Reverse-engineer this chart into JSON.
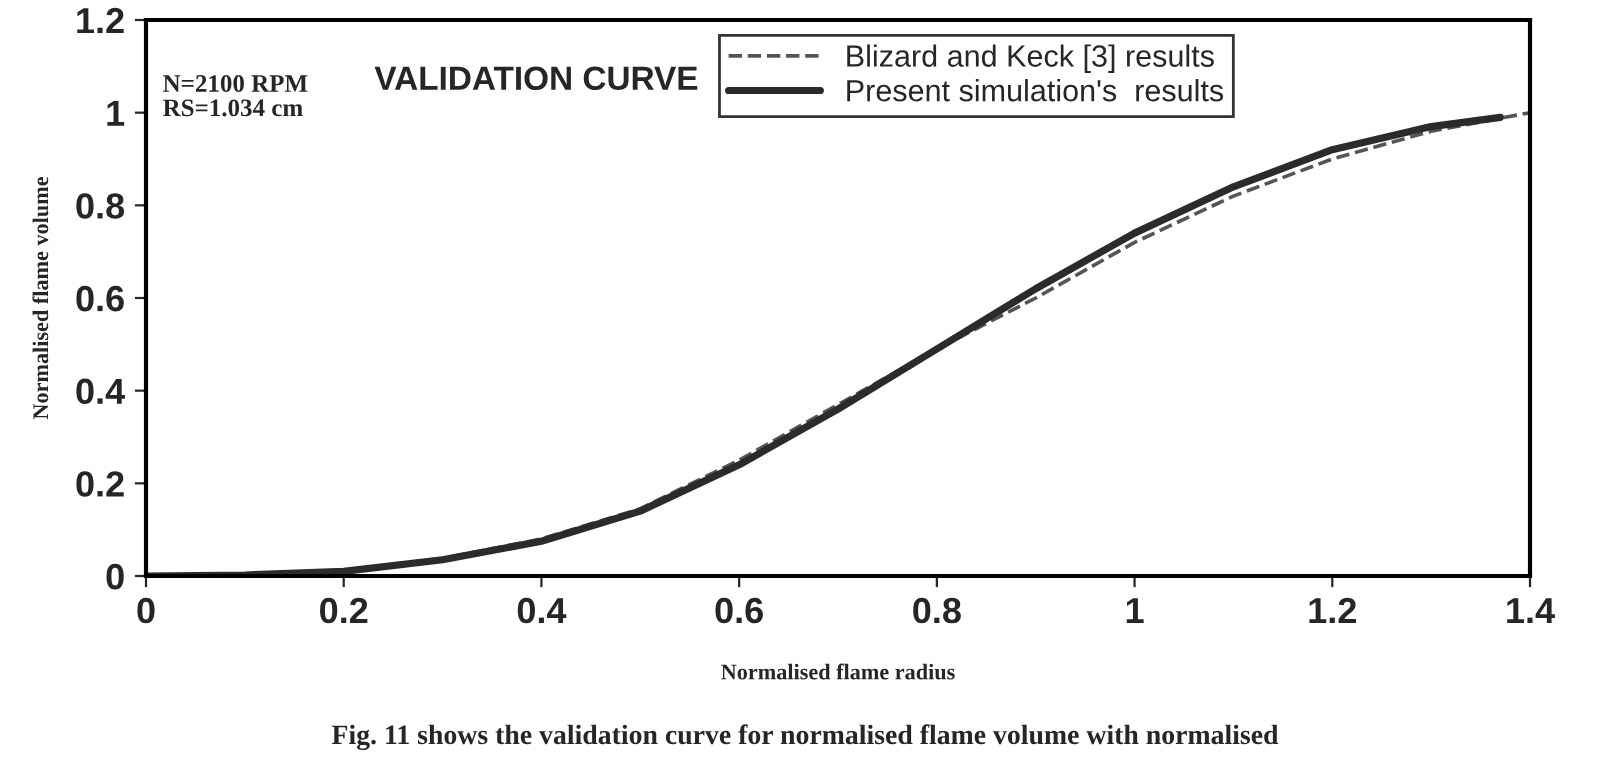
{
  "chart_data": {
    "type": "line",
    "xlabel": "Normalised flame radius",
    "ylabel": "Normalised flame volume",
    "annotations": [
      "N=2100 RPM\nRS=1.034 cm",
      "VALIDATION CURVE",
      "Fig. 11 shows the validation curve for normalised flame volume with normalised"
    ],
    "series": [
      {
        "name": "Blizard and Keck [3] results",
        "color": "#555555",
        "line_style": "dashed",
        "x": [
          0,
          0.1,
          0.2,
          0.3,
          0.4,
          0.5,
          0.6,
          0.7,
          0.8,
          0.9,
          1.0,
          1.1,
          1.2,
          1.3,
          1.4
        ],
        "values": [
          0,
          0.002,
          0.012,
          0.038,
          0.08,
          0.145,
          0.25,
          0.37,
          0.49,
          0.6,
          0.72,
          0.82,
          0.9,
          0.96,
          1.0
        ]
      },
      {
        "name": "Present simulation's  results",
        "color": "#2b2b2b",
        "line_style": "solid",
        "x": [
          0,
          0.1,
          0.2,
          0.3,
          0.4,
          0.5,
          0.6,
          0.7,
          0.8,
          0.9,
          1.0,
          1.1,
          1.2,
          1.3,
          1.37
        ],
        "values": [
          0,
          0.002,
          0.01,
          0.035,
          0.075,
          0.14,
          0.24,
          0.36,
          0.49,
          0.62,
          0.74,
          0.84,
          0.92,
          0.97,
          0.99
        ]
      }
    ],
    "xlim": [
      0,
      1.4
    ],
    "xticks": [
      0,
      0.2,
      0.4,
      0.6,
      0.8,
      1,
      1.2,
      1.4
    ],
    "ylim": [
      0,
      1.2
    ],
    "yticks": [
      0,
      0.2,
      0.4,
      0.6,
      0.8,
      1,
      1.2
    ],
    "grid": false,
    "legend": "top",
    "marker": "none"
  }
}
